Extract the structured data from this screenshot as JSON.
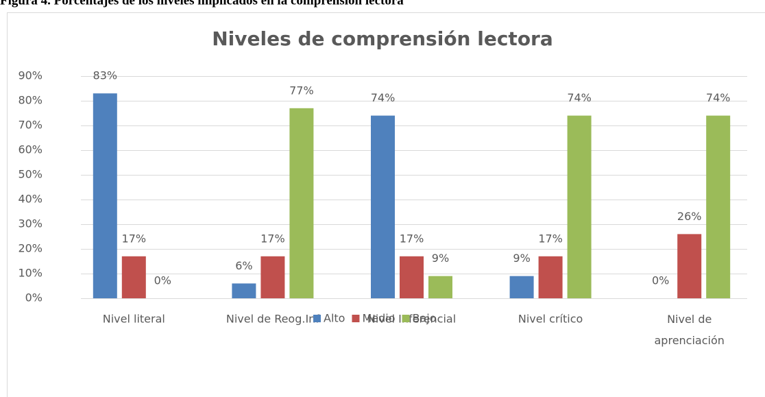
{
  "caption": "Figura 4.  Porcentajes de los niveles implicados en la comprensión lectora",
  "chart_data": {
    "type": "bar",
    "title": "Niveles de comprensión lectora",
    "categories": [
      "Nivel literal",
      "Nivel de Reog.Inf",
      "Nivel Inferencial",
      "Nivel crítico",
      "Nivel de aprenciación"
    ],
    "series": [
      {
        "name": "Alto",
        "color": "#4f81bd",
        "values": [
          83,
          6,
          74,
          9,
          0
        ],
        "value_labels": [
          "83%",
          "6%",
          "74%",
          "9%",
          "0%"
        ]
      },
      {
        "name": "Medio",
        "color": "#c0504d",
        "values": [
          17,
          17,
          17,
          17,
          26
        ],
        "value_labels": [
          "17%",
          "17%",
          "17%",
          "17%",
          "26%"
        ]
      },
      {
        "name": "Bajo",
        "color": "#9bbb59",
        "values": [
          0,
          77,
          9,
          74,
          74
        ],
        "value_labels": [
          "0%",
          "77%",
          "9%",
          "74%",
          "74%"
        ]
      }
    ],
    "ylim": [
      0,
      90
    ],
    "yticks": [
      {
        "value": 0,
        "label": "0%"
      },
      {
        "value": 10,
        "label": "10%"
      },
      {
        "value": 20,
        "label": "20%"
      },
      {
        "value": 30,
        "label": "30%"
      },
      {
        "value": 40,
        "label": "40%"
      },
      {
        "value": 50,
        "label": "50%"
      },
      {
        "value": 60,
        "label": "60%"
      },
      {
        "value": 70,
        "label": "70%"
      },
      {
        "value": 80,
        "label": "80%"
      },
      {
        "value": 90,
        "label": "90%"
      }
    ],
    "grid": true,
    "legend": "bottom"
  }
}
